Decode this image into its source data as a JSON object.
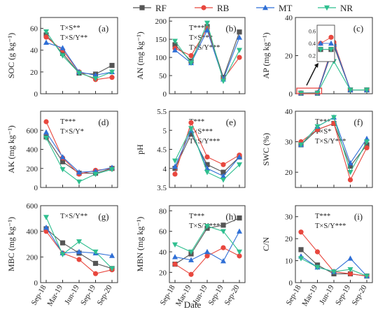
{
  "chart_data": {
    "type": "line",
    "categories": [
      "Sep-18",
      "Mar-19",
      "Jun-19",
      "Sep-19",
      "Sep-20"
    ],
    "xlabel": "Date",
    "legend": {
      "placement": "top-center",
      "entries": [
        {
          "name": "RF",
          "color": "#555555",
          "marker": "square"
        },
        {
          "name": "RB",
          "color": "#e8473e",
          "marker": "circle"
        },
        {
          "name": "MT",
          "color": "#2f6fd6",
          "marker": "triangle-up"
        },
        {
          "name": "NR",
          "color": "#2fbf8f",
          "marker": "triangle-down"
        }
      ]
    },
    "panels": [
      {
        "label": "(a)",
        "ylabel": "SOC (g kg⁻¹)",
        "ylim": [
          0,
          70
        ],
        "yticks": [
          0,
          20,
          40,
          60
        ],
        "annotations": [
          "T×S**",
          "T×S/Y**"
        ],
        "series": [
          {
            "name": "RF",
            "values": [
              54,
              37,
              19,
              18,
              26
            ]
          },
          {
            "name": "RB",
            "values": [
              52,
              40,
              20,
              13,
              15
            ]
          },
          {
            "name": "MT",
            "values": [
              47,
              42,
              20,
              17,
              20
            ]
          },
          {
            "name": "NR",
            "values": [
              57,
              35,
              19,
              14,
              20
            ]
          }
        ]
      },
      {
        "label": "(b)",
        "ylabel": "AN (mg kg⁻¹)",
        "ylim": [
          0,
          210
        ],
        "yticks": [
          0,
          50,
          100,
          150,
          200
        ],
        "annotations": [
          "T***",
          "T×S***",
          "T×S/Y***"
        ],
        "series": [
          {
            "name": "RF",
            "values": [
              135,
              90,
              185,
              45,
              170
            ]
          },
          {
            "name": "RB",
            "values": [
              125,
              105,
              180,
              40,
              100
            ]
          },
          {
            "name": "MT",
            "values": [
              120,
              85,
              175,
              40,
              155
            ]
          },
          {
            "name": "NR",
            "values": [
              145,
              85,
              195,
              35,
              120
            ]
          }
        ]
      },
      {
        "label": "(c)",
        "ylabel": "AP (mg kg⁻¹)",
        "ylim": [
          0,
          40
        ],
        "yticks": [
          0,
          20,
          40
        ],
        "annotations": [],
        "inset": {
          "yticks": [
            "0.6",
            "0.4",
            "0.2"
          ]
        },
        "series": [
          {
            "name": "RF",
            "values": [
              0.3,
              0.3,
              25,
              2,
              2
            ]
          },
          {
            "name": "RB",
            "values": [
              0.4,
              0.5,
              27,
              2,
              2
            ]
          },
          {
            "name": "MT",
            "values": [
              0.4,
              0.4,
              26,
              2,
              2
            ]
          },
          {
            "name": "NR",
            "values": [
              0.3,
              0.3,
              17,
              2,
              2
            ]
          }
        ]
      },
      {
        "label": "(d)",
        "ylabel": "AK (mg kg⁻¹)",
        "ylim": [
          0,
          800
        ],
        "yticks": [
          0,
          200,
          400,
          600
        ],
        "annotations": [
          "T***",
          "T×S/Y*"
        ],
        "series": [
          {
            "name": "RF",
            "values": [
              530,
              270,
              150,
              150,
              200
            ]
          },
          {
            "name": "RB",
            "values": [
              690,
              310,
              140,
              180,
              200
            ]
          },
          {
            "name": "MT",
            "values": [
              580,
              320,
              160,
              170,
              210
            ]
          },
          {
            "name": "NR",
            "values": [
              520,
              190,
              60,
              140,
              190
            ]
          }
        ]
      },
      {
        "label": "(e)",
        "ylabel": "pH",
        "ylim": [
          3.5,
          5.5
        ],
        "yticks": [
          3.5,
          4.0,
          4.5,
          5.0,
          5.5
        ],
        "annotations": [
          "T***",
          "T×S***",
          "T×S/Y***"
        ],
        "series": [
          {
            "name": "RF",
            "values": [
              4.0,
              4.9,
              4.1,
              3.9,
              4.3
            ]
          },
          {
            "name": "RB",
            "values": [
              3.85,
              5.2,
              4.3,
              4.1,
              4.35
            ]
          },
          {
            "name": "MT",
            "values": [
              4.05,
              5.0,
              4.0,
              3.8,
              4.3
            ]
          },
          {
            "name": "NR",
            "values": [
              4.2,
              5.05,
              3.9,
              3.7,
              4.1
            ]
          }
        ]
      },
      {
        "label": "(f)",
        "ylabel": "SWC (%)",
        "ylim": [
          15,
          40
        ],
        "yticks": [
          20,
          30,
          40
        ],
        "annotations": [
          "T***",
          "T×S*",
          "T×S/Y***"
        ],
        "series": [
          {
            "name": "RF",
            "values": [
              29,
              34,
              36,
              22,
              29
            ]
          },
          {
            "name": "RB",
            "values": [
              30,
              34,
              36,
              17.5,
              28
            ]
          },
          {
            "name": "MT",
            "values": [
              29,
              35,
              38,
              23,
              31
            ]
          },
          {
            "name": "NR",
            "values": [
              29,
              35,
              38,
              20,
              30
            ]
          }
        ]
      },
      {
        "label": "(g)",
        "ylabel": "MBC (mg kg⁻¹)",
        "ylim": [
          0,
          600
        ],
        "yticks": [
          0,
          200,
          400,
          600
        ],
        "annotations": [
          "T×S/Y**"
        ],
        "series": [
          {
            "name": "RF",
            "values": [
              420,
              310,
              230,
              150,
              110
            ]
          },
          {
            "name": "RB",
            "values": [
              400,
              230,
              180,
              70,
              100
            ]
          },
          {
            "name": "MT",
            "values": [
              430,
              230,
              240,
              230,
              210
            ]
          },
          {
            "name": "NR",
            "values": [
              510,
              220,
              320,
              240,
              110
            ]
          }
        ]
      },
      {
        "label": "(h)",
        "ylabel": "MBN (mg kg⁻¹)",
        "ylim": [
          10,
          85
        ],
        "yticks": [
          20,
          40,
          60,
          80
        ],
        "annotations": [
          "T***",
          "T×S/Y***"
        ],
        "series": [
          {
            "name": "RF",
            "values": [
              28,
              38,
              63,
              66,
              73
            ]
          },
          {
            "name": "RB",
            "values": [
              28,
              18,
              36,
              44,
              36
            ]
          },
          {
            "name": "MT",
            "values": [
              35,
              32,
              40,
              31,
              60
            ]
          },
          {
            "name": "NR",
            "values": [
              47,
              40,
              65,
              60,
              40
            ]
          }
        ]
      },
      {
        "label": "(i)",
        "ylabel": "C/N",
        "ylim": [
          0,
          35
        ],
        "yticks": [
          0,
          10,
          20,
          30
        ],
        "annotations": [
          "T***",
          "T×S/Y***"
        ],
        "series": [
          {
            "name": "RF",
            "values": [
              15,
              8,
              4,
              4,
              3
            ]
          },
          {
            "name": "RB",
            "values": [
              23,
              14,
              5,
              4,
              3
            ]
          },
          {
            "name": "MT",
            "values": [
              12,
              7,
              5,
              11,
              3
            ]
          },
          {
            "name": "NR",
            "values": [
              11,
              7,
              5,
              6,
              3
            ]
          }
        ]
      }
    ]
  }
}
